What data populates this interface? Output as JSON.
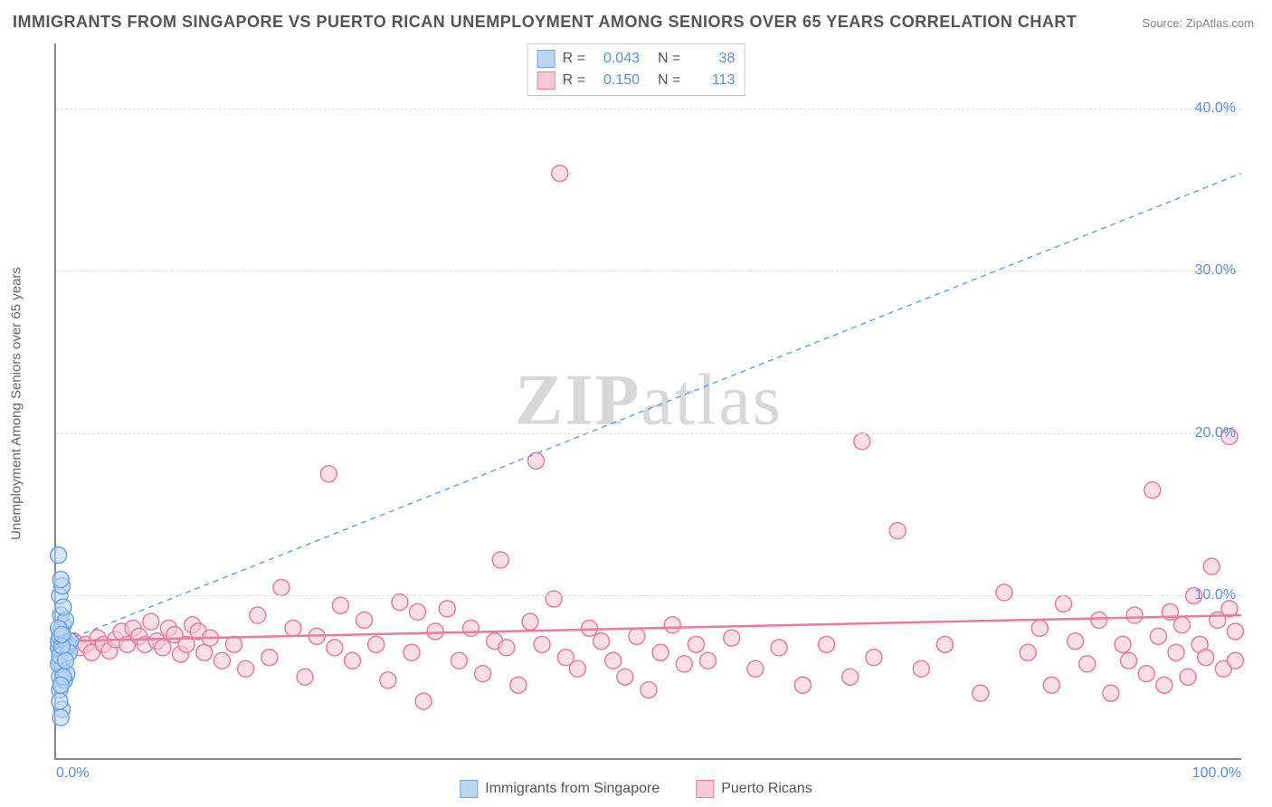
{
  "title": "IMMIGRANTS FROM SINGAPORE VS PUERTO RICAN UNEMPLOYMENT AMONG SENIORS OVER 65 YEARS CORRELATION CHART",
  "source_label": "Source:",
  "source_name": "ZipAtlas.com",
  "watermark_zip": "ZIP",
  "watermark_atlas": "atlas",
  "ylabel": "Unemployment Among Seniors over 65 years",
  "chart": {
    "type": "scatter",
    "xlim": [
      0,
      100
    ],
    "ylim": [
      0,
      44
    ],
    "x_ticks": [
      {
        "v": 0,
        "label": "0.0%"
      },
      {
        "v": 100,
        "label": "100.0%"
      }
    ],
    "y_ticks": [
      {
        "v": 10,
        "label": "10.0%"
      },
      {
        "v": 20,
        "label": "20.0%"
      },
      {
        "v": 30,
        "label": "30.0%"
      },
      {
        "v": 40,
        "label": "40.0%"
      }
    ],
    "grid_color": "#dddddd",
    "axis_color": "#888888",
    "background_color": "#ffffff",
    "marker_radius": 9,
    "marker_stroke_width": 1.5,
    "marker_fill_opacity": 0.25,
    "series": {
      "singapore": {
        "label": "Immigrants from Singapore",
        "color_stroke": "#6aa3e0",
        "color_fill": "#bcd6f2",
        "R": "0.043",
        "N": "38",
        "trend": {
          "x1": 0,
          "y1": 7.0,
          "x2": 100,
          "y2": 36.0,
          "dash": "6,5",
          "width": 1.5,
          "color": "#6aa3e0"
        },
        "points": [
          [
            0.2,
            6.8
          ],
          [
            0.2,
            7.2
          ],
          [
            0.3,
            7.5
          ],
          [
            0.4,
            6.5
          ],
          [
            0.3,
            6.0
          ],
          [
            0.5,
            7.8
          ],
          [
            0.6,
            8.2
          ],
          [
            0.4,
            8.8
          ],
          [
            0.8,
            7.0
          ],
          [
            0.5,
            5.5
          ],
          [
            0.7,
            6.2
          ],
          [
            0.3,
            5.0
          ],
          [
            0.9,
            6.8
          ],
          [
            0.6,
            7.4
          ],
          [
            1.0,
            7.0
          ],
          [
            0.4,
            7.9
          ],
          [
            0.8,
            8.5
          ],
          [
            0.3,
            10.0
          ],
          [
            0.5,
            10.6
          ],
          [
            0.2,
            12.5
          ],
          [
            0.4,
            11.0
          ],
          [
            0.6,
            9.3
          ],
          [
            1.2,
            7.2
          ],
          [
            0.3,
            4.2
          ],
          [
            0.5,
            3.0
          ],
          [
            0.4,
            2.5
          ],
          [
            0.7,
            4.8
          ],
          [
            0.2,
            5.8
          ],
          [
            0.9,
            5.2
          ],
          [
            0.3,
            6.3
          ],
          [
            1.1,
            6.5
          ],
          [
            0.5,
            6.9
          ],
          [
            0.2,
            8.0
          ],
          [
            0.6,
            5.0
          ],
          [
            0.4,
            4.5
          ],
          [
            0.3,
            3.5
          ],
          [
            0.8,
            6.0
          ],
          [
            0.5,
            7.6
          ]
        ]
      },
      "puertorican": {
        "label": "Puerto Ricans",
        "color_stroke": "#e87ca0",
        "color_fill": "#f6c9d8",
        "R": "0.150",
        "N": "113",
        "trend": {
          "x1": 0,
          "y1": 7.2,
          "x2": 100,
          "y2": 8.8,
          "dash": "",
          "width": 2.5,
          "color": "#e87ca0"
        },
        "points": [
          [
            1.5,
            7.2
          ],
          [
            2.0,
            6.8
          ],
          [
            2.5,
            7.0
          ],
          [
            3.0,
            6.5
          ],
          [
            3.5,
            7.4
          ],
          [
            4.0,
            7.0
          ],
          [
            4.5,
            6.6
          ],
          [
            5.0,
            7.3
          ],
          [
            5.5,
            7.8
          ],
          [
            6.0,
            7.0
          ],
          [
            6.5,
            8.0
          ],
          [
            7.0,
            7.5
          ],
          [
            7.5,
            7.0
          ],
          [
            8.0,
            8.4
          ],
          [
            8.5,
            7.2
          ],
          [
            9.0,
            6.8
          ],
          [
            9.5,
            8.0
          ],
          [
            10.0,
            7.6
          ],
          [
            10.5,
            6.4
          ],
          [
            11.0,
            7.0
          ],
          [
            11.5,
            8.2
          ],
          [
            12.0,
            7.8
          ],
          [
            12.5,
            6.5
          ],
          [
            13.0,
            7.4
          ],
          [
            14.0,
            6.0
          ],
          [
            15.0,
            7.0
          ],
          [
            16.0,
            5.5
          ],
          [
            17.0,
            8.8
          ],
          [
            18.0,
            6.2
          ],
          [
            19.0,
            10.5
          ],
          [
            20.0,
            8.0
          ],
          [
            21.0,
            5.0
          ],
          [
            22.0,
            7.5
          ],
          [
            23.0,
            17.5
          ],
          [
            23.5,
            6.8
          ],
          [
            24.0,
            9.4
          ],
          [
            25.0,
            6.0
          ],
          [
            26.0,
            8.5
          ],
          [
            27.0,
            7.0
          ],
          [
            28.0,
            4.8
          ],
          [
            29.0,
            9.6
          ],
          [
            30.0,
            6.5
          ],
          [
            30.5,
            9.0
          ],
          [
            31.0,
            3.5
          ],
          [
            32.0,
            7.8
          ],
          [
            33.0,
            9.2
          ],
          [
            34.0,
            6.0
          ],
          [
            35.0,
            8.0
          ],
          [
            36.0,
            5.2
          ],
          [
            37.0,
            7.2
          ],
          [
            37.5,
            12.2
          ],
          [
            38.0,
            6.8
          ],
          [
            39.0,
            4.5
          ],
          [
            40.0,
            8.4
          ],
          [
            40.5,
            18.3
          ],
          [
            41.0,
            7.0
          ],
          [
            42.0,
            9.8
          ],
          [
            43.0,
            6.2
          ],
          [
            42.5,
            36.0
          ],
          [
            44.0,
            5.5
          ],
          [
            45.0,
            8.0
          ],
          [
            46.0,
            7.2
          ],
          [
            47.0,
            6.0
          ],
          [
            48.0,
            5.0
          ],
          [
            49.0,
            7.5
          ],
          [
            50.0,
            4.2
          ],
          [
            51.0,
            6.5
          ],
          [
            52.0,
            8.2
          ],
          [
            53.0,
            5.8
          ],
          [
            54.0,
            7.0
          ],
          [
            55.0,
            6.0
          ],
          [
            57.0,
            7.4
          ],
          [
            59.0,
            5.5
          ],
          [
            61.0,
            6.8
          ],
          [
            63.0,
            4.5
          ],
          [
            65.0,
            7.0
          ],
          [
            67.0,
            5.0
          ],
          [
            68.0,
            19.5
          ],
          [
            69.0,
            6.2
          ],
          [
            71.0,
            14.0
          ],
          [
            73.0,
            5.5
          ],
          [
            75.0,
            7.0
          ],
          [
            78.0,
            4.0
          ],
          [
            80.0,
            10.2
          ],
          [
            82.0,
            6.5
          ],
          [
            83.0,
            8.0
          ],
          [
            84.0,
            4.5
          ],
          [
            85.0,
            9.5
          ],
          [
            86.0,
            7.2
          ],
          [
            87.0,
            5.8
          ],
          [
            88.0,
            8.5
          ],
          [
            89.0,
            4.0
          ],
          [
            90.0,
            7.0
          ],
          [
            90.5,
            6.0
          ],
          [
            91.0,
            8.8
          ],
          [
            92.0,
            5.2
          ],
          [
            92.5,
            16.5
          ],
          [
            93.0,
            7.5
          ],
          [
            93.5,
            4.5
          ],
          [
            94.0,
            9.0
          ],
          [
            94.5,
            6.5
          ],
          [
            95.0,
            8.2
          ],
          [
            95.5,
            5.0
          ],
          [
            96.0,
            10.0
          ],
          [
            96.5,
            7.0
          ],
          [
            97.0,
            6.2
          ],
          [
            97.5,
            11.8
          ],
          [
            98.0,
            8.5
          ],
          [
            98.5,
            5.5
          ],
          [
            99.0,
            9.2
          ],
          [
            99.0,
            19.8
          ],
          [
            99.5,
            7.8
          ],
          [
            99.5,
            6.0
          ]
        ]
      }
    }
  },
  "legend_top": {
    "rows": [
      {
        "swatch": "singapore",
        "r_label": "R =",
        "r_val": "0.043",
        "n_label": "N =",
        "n_val": "38"
      },
      {
        "swatch": "puertorican",
        "r_label": "R =",
        "r_val": "0.150",
        "n_label": "N =",
        "n_val": "113"
      }
    ]
  }
}
